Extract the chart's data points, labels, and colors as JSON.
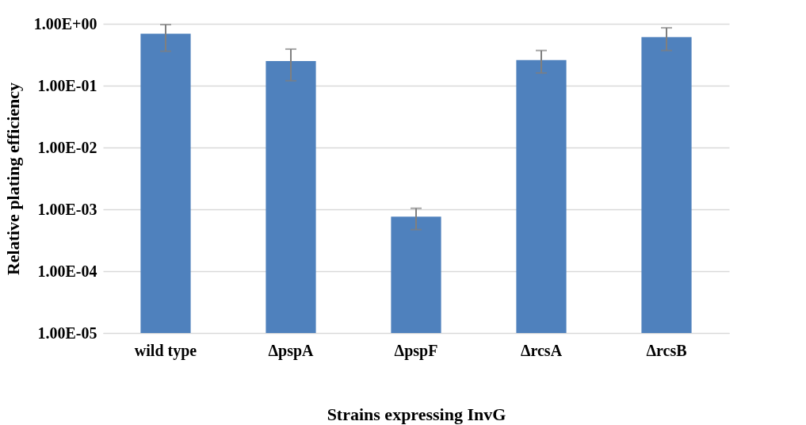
{
  "chart_data": {
    "type": "bar",
    "xlabel": "Strains expressing InvG",
    "ylabel": "Relative plating efficiency",
    "categories": [
      "wild type",
      "ΔpspA",
      "ΔpspF",
      "ΔrcsA",
      "ΔrcsB"
    ],
    "values": [
      0.69,
      0.25,
      0.00076,
      0.26,
      0.61
    ],
    "errors": [
      [
        0.36,
        0.97
      ],
      [
        0.12,
        0.39
      ],
      [
        0.00047,
        0.00104
      ],
      [
        0.16,
        0.37
      ],
      [
        0.37,
        0.86
      ]
    ],
    "color": "#4f81bd",
    "log": true,
    "ylim": [
      1e-05,
      1
    ],
    "yticks": [
      {
        "value": 1e-05,
        "label": "1.00E-05"
      },
      {
        "value": 0.0001,
        "label": "1.00E-04"
      },
      {
        "value": 0.001,
        "label": "1.00E-03"
      },
      {
        "value": 0.01,
        "label": "1.00E-02"
      },
      {
        "value": 0.1,
        "label": "1.00E-01"
      },
      {
        "value": 1,
        "label": "1.00E+00"
      }
    ],
    "grid": "y"
  }
}
